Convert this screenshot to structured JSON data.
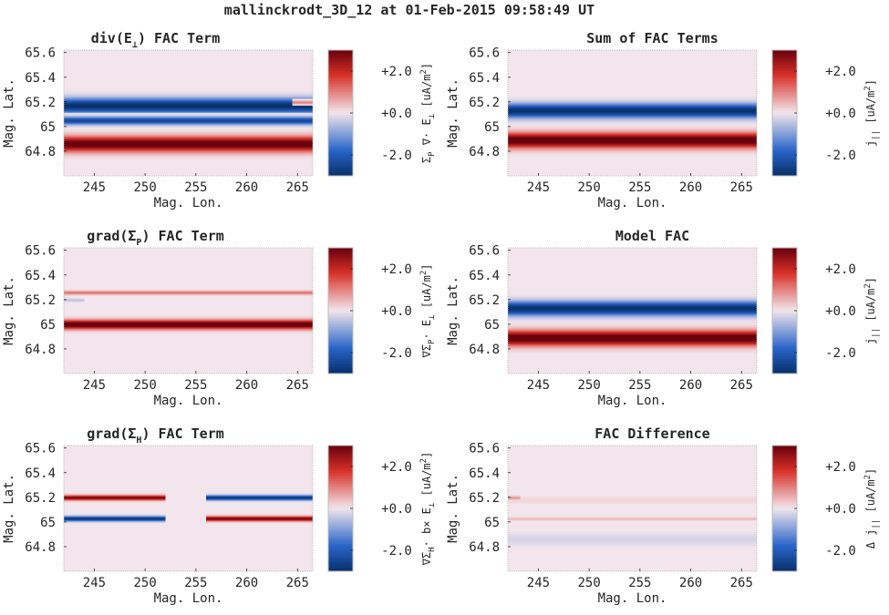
{
  "figure": {
    "title": "mallinckrodt_3D_12 at 01-Feb-2015 09:58:49 UT"
  },
  "colormap": {
    "neg": "#08306b",
    "mid": "#f2e6ec",
    "pos": "#67000d"
  },
  "chart_data": [
    {
      "type": "heatmap",
      "title": "div(E⊥) FAC Term",
      "title_main": "div(E",
      "title_sub": "⊥",
      "title_end": ") FAC Term",
      "xlabel": "Mag. Lon.",
      "ylabel": "Mag. Lat.",
      "xticks": [
        "245",
        "250",
        "255",
        "260",
        "265"
      ],
      "yticks": [
        "65.6",
        "65.4",
        "65.2",
        "65",
        "64.8"
      ],
      "xlim": [
        242,
        266.5
      ],
      "ylim": [
        64.6,
        65.62
      ],
      "clim": [
        -3,
        3
      ],
      "cbar_ticks": [
        "+2.0",
        "+0.0",
        "-2.0"
      ],
      "cbar_label": "ΣP ∇· E⊥ [uA/m2]",
      "cbar_label_parts": [
        "Σ",
        "P",
        " ∇· E",
        "⊥",
        " [uA/m",
        "2",
        "]"
      ],
      "bands": [
        {
          "center": 64.86,
          "width": 0.075,
          "value": 3.2,
          "x_start": 242,
          "x_end": 266.5
        },
        {
          "center": 65.17,
          "width": 0.075,
          "value": -3.0,
          "x_start": 242,
          "x_end": 266.5
        },
        {
          "center": 65.05,
          "width": 0.04,
          "value": -2.4,
          "x_start": 242,
          "x_end": 266.5
        },
        {
          "center": 65.2,
          "width": 0.018,
          "value": 1.0,
          "x_start": 264.5,
          "x_end": 266.5
        }
      ]
    },
    {
      "type": "heatmap",
      "title": "Sum of FAC Terms",
      "title_main": "Sum of FAC Terms",
      "title_sub": "",
      "title_end": "",
      "xlabel": "Mag. Lon.",
      "ylabel": "Mag. Lat.",
      "xticks": [
        "245",
        "250",
        "255",
        "260",
        "265"
      ],
      "yticks": [
        "65.6",
        "65.4",
        "65.2",
        "65",
        "64.8"
      ],
      "xlim": [
        242,
        266.5
      ],
      "ylim": [
        64.6,
        65.62
      ],
      "clim": [
        -3,
        3
      ],
      "cbar_ticks": [
        "+2.0",
        "+0.0",
        "-2.0"
      ],
      "cbar_label": "j|| [uA/m2]",
      "cbar_label_parts": [
        "j",
        "||",
        " [uA/m",
        "2",
        "]"
      ],
      "bands": [
        {
          "center": 64.89,
          "width": 0.075,
          "value": 3.3,
          "x_start": 242,
          "x_end": 266.5
        },
        {
          "center": 65.13,
          "width": 0.07,
          "value": -3.0,
          "x_start": 242,
          "x_end": 266.5
        }
      ]
    },
    {
      "type": "heatmap",
      "title": "grad(ΣP) FAC Term",
      "title_main": "grad(Σ",
      "title_sub": "P",
      "title_end": ") FAC Term",
      "xlabel": "Mag. Lon.",
      "ylabel": "Mag. Lat.",
      "xticks": [
        "245",
        "250",
        "255",
        "260",
        "265"
      ],
      "yticks": [
        "65.6",
        "65.4",
        "65.2",
        "65",
        "64.8"
      ],
      "xlim": [
        242,
        266.5
      ],
      "ylim": [
        64.6,
        65.62
      ],
      "clim": [
        -3,
        3
      ],
      "cbar_ticks": [
        "+2.0",
        "+0.0",
        "-2.0"
      ],
      "cbar_label": "∇ΣP· E⊥ [uA/m2]",
      "cbar_label_parts": [
        "∇Σ",
        "P",
        "· E",
        "⊥",
        " [uA/m",
        "2",
        "]"
      ],
      "bands": [
        {
          "center": 65.0,
          "width": 0.045,
          "value": 3.4,
          "x_start": 242,
          "x_end": 266.5
        },
        {
          "center": 65.26,
          "width": 0.02,
          "value": 1.1,
          "x_start": 242,
          "x_end": 266.5
        },
        {
          "center": 65.2,
          "width": 0.015,
          "value": -0.5,
          "x_start": 242,
          "x_end": 244
        }
      ]
    },
    {
      "type": "heatmap",
      "title": "Model FAC",
      "title_main": "Model FAC",
      "title_sub": "",
      "title_end": "",
      "xlabel": "Mag. Lon.",
      "ylabel": "Mag. Lat.",
      "xticks": [
        "245",
        "250",
        "255",
        "260",
        "265"
      ],
      "yticks": [
        "65.6",
        "65.4",
        "65.2",
        "65",
        "64.8"
      ],
      "xlim": [
        242,
        266.5
      ],
      "ylim": [
        64.6,
        65.62
      ],
      "clim": [
        -3,
        3
      ],
      "cbar_ticks": [
        "+2.0",
        "+0.0",
        "-2.0"
      ],
      "cbar_label": "j|| [uA/m2]",
      "cbar_label_parts": [
        "j",
        "||",
        " [uA/m",
        "2",
        "]"
      ],
      "bands": [
        {
          "center": 64.89,
          "width": 0.075,
          "value": 3.3,
          "x_start": 242,
          "x_end": 266.5
        },
        {
          "center": 65.13,
          "width": 0.07,
          "value": -3.0,
          "x_start": 242,
          "x_end": 266.5
        }
      ]
    },
    {
      "type": "heatmap",
      "title": "grad(ΣH) FAC Term",
      "title_main": "grad(Σ",
      "title_sub": "H",
      "title_end": ") FAC Term",
      "xlabel": "Mag. Lon.",
      "ylabel": "Mag. Lat.",
      "xticks": [
        "245",
        "250",
        "255",
        "260",
        "265"
      ],
      "yticks": [
        "65.6",
        "65.4",
        "65.2",
        "65",
        "64.8"
      ],
      "xlim": [
        242,
        266.5
      ],
      "ylim": [
        64.6,
        65.62
      ],
      "clim": [
        -3,
        3
      ],
      "cbar_ticks": [
        "+2.0",
        "+0.0",
        "-2.0"
      ],
      "cbar_label": "∇ΣH· b× E⊥ [uA/m2]",
      "cbar_label_parts": [
        "∇Σ",
        "H",
        "· b× E",
        "⊥",
        " [uA/m",
        "2",
        "]"
      ],
      "bands": [
        {
          "center": 65.2,
          "width": 0.025,
          "value": 2.8,
          "x_start": 242,
          "x_end": 252
        },
        {
          "center": 65.03,
          "width": 0.025,
          "value": -2.8,
          "x_start": 242,
          "x_end": 252
        },
        {
          "center": 65.2,
          "width": 0.025,
          "value": -2.8,
          "x_start": 256,
          "x_end": 266.5
        },
        {
          "center": 65.03,
          "width": 0.025,
          "value": 2.8,
          "x_start": 256,
          "x_end": 266.5
        }
      ]
    },
    {
      "type": "heatmap",
      "title": "FAC Difference",
      "title_main": "FAC Difference",
      "title_sub": "",
      "title_end": "",
      "xlabel": "Mag. Lon.",
      "ylabel": "Mag. Lat.",
      "xticks": [
        "245",
        "250",
        "255",
        "260",
        "265"
      ],
      "yticks": [
        "65.6",
        "65.4",
        "65.2",
        "65",
        "64.8"
      ],
      "xlim": [
        242,
        266.5
      ],
      "ylim": [
        64.6,
        65.62
      ],
      "clim": [
        -3,
        3
      ],
      "cbar_ticks": [
        "+2.0",
        "+0.0",
        "-2.0"
      ],
      "cbar_label": "Δ j|| [uA/m2]",
      "cbar_label_parts": [
        "Δ j",
        "||",
        " [uA/m",
        "2",
        "]"
      ],
      "bands": [
        {
          "center": 65.03,
          "width": 0.015,
          "value": 0.45,
          "x_start": 242,
          "x_end": 266.5
        },
        {
          "center": 64.86,
          "width": 0.06,
          "value": -0.25,
          "x_start": 242,
          "x_end": 266.5
        },
        {
          "center": 65.18,
          "width": 0.04,
          "value": 0.15,
          "x_start": 242,
          "x_end": 266.5
        },
        {
          "center": 65.2,
          "width": 0.018,
          "value": 0.8,
          "x_start": 242,
          "x_end": 243.2
        }
      ]
    }
  ]
}
